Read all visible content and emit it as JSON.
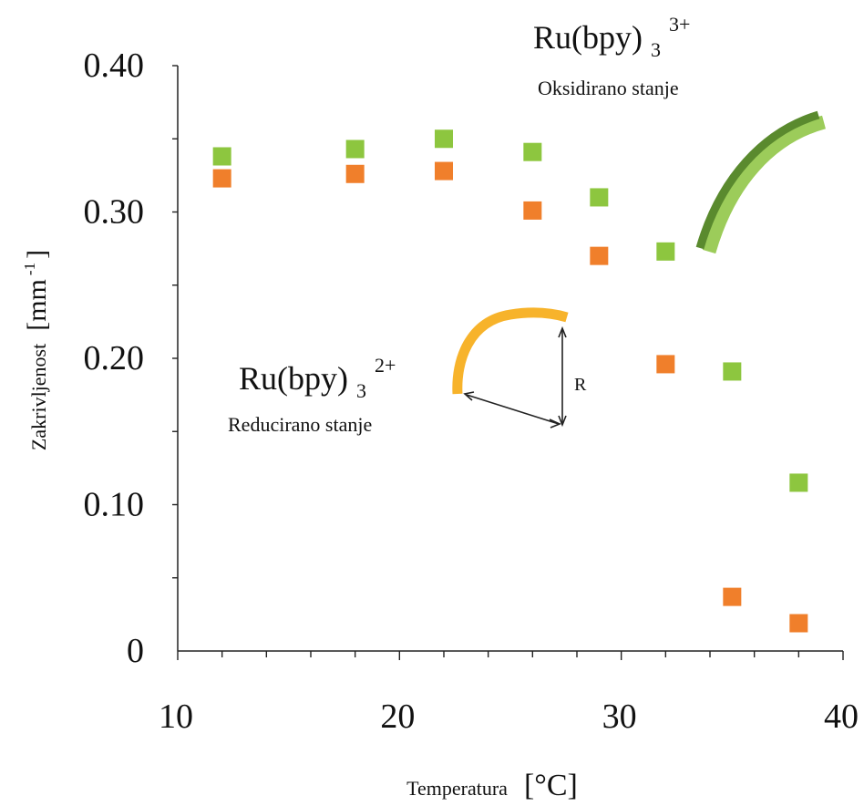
{
  "chart_data": {
    "type": "scatter",
    "title": "",
    "xlabel": "Temperatura",
    "xlabel_unit": "[°C]",
    "ylabel": "Zakrivljenost",
    "ylabel_unit_base": "[mm",
    "ylabel_unit_sup": "-1",
    "ylabel_unit_end": "]",
    "xlim": [
      10,
      40
    ],
    "ylim": [
      0,
      0.4
    ],
    "x_ticks": [
      "10",
      "20",
      "30",
      "40"
    ],
    "y_ticks": [
      "0",
      "0.10",
      "0.20",
      "0.30",
      "0.40"
    ],
    "x_tick_values": [
      10,
      20,
      30,
      40
    ],
    "y_tick_values": [
      0,
      0.1,
      0.2,
      0.3,
      0.4
    ],
    "grid": false,
    "series": [
      {
        "color": "#8dc63f",
        "x": [
          12,
          18,
          22,
          26,
          29,
          32,
          35,
          38
        ],
        "y": [
          0.338,
          0.343,
          0.35,
          0.341,
          0.31,
          0.273,
          0.191,
          0.115
        ]
      },
      {
        "color": "#f07f2b",
        "x": [
          12,
          18,
          22,
          26,
          29,
          32,
          35,
          38
        ],
        "y": [
          0.323,
          0.326,
          0.328,
          0.301,
          0.27,
          0.196,
          0.037,
          0.019
        ]
      }
    ],
    "annotations": {
      "oxidized_formula": "Ru(bpy)",
      "oxidized_sub": "3",
      "oxidized_sup": "3+",
      "oxidized_caption": "Oksidirano stanje",
      "reduced_formula": "Ru(bpy)",
      "reduced_sub": "3",
      "reduced_sup": "2+",
      "reduced_caption": "Reducirano stanje",
      "radius_label": "R"
    },
    "colors": {
      "oxidized_strip_dark": "#5a8a2e",
      "oxidized_strip_light": "#9ccc5a",
      "reduced_strip": "#f7b32b",
      "reduced_strip_edge": "#e8a020"
    }
  }
}
